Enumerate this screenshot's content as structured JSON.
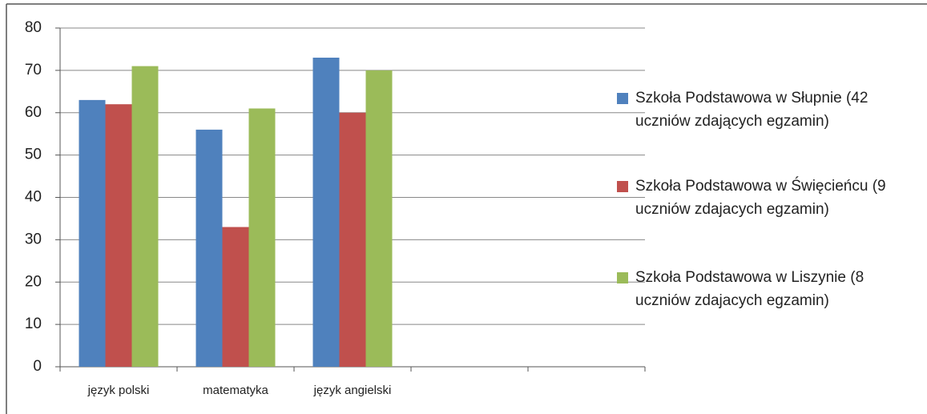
{
  "chart_data": {
    "type": "bar",
    "categories": [
      "język polski",
      "matematyka",
      "język angielski",
      null,
      null
    ],
    "series": [
      {
        "name": "Szkoła Podstawowa w Słupnie (42 uczniów zdających egzamin)",
        "color": "#4f81bd",
        "values": [
          63,
          56,
          73,
          null,
          null
        ]
      },
      {
        "name": "Szkoła Podstawowa w Święcieńcu (9 uczniów zdajacych egzamin)",
        "color": "#c0504d",
        "values": [
          62,
          33,
          60,
          null,
          null
        ]
      },
      {
        "name": "Szkoła Podstawowa w Liszynie (8 uczniów zdajacych egzamin)",
        "color": "#9bbb59",
        "values": [
          71,
          61,
          70,
          null,
          null
        ]
      }
    ],
    "ylim": [
      0,
      80
    ],
    "yticks": [
      0,
      10,
      20,
      30,
      40,
      50,
      60,
      70,
      80
    ],
    "grid": true,
    "legend": "right"
  }
}
